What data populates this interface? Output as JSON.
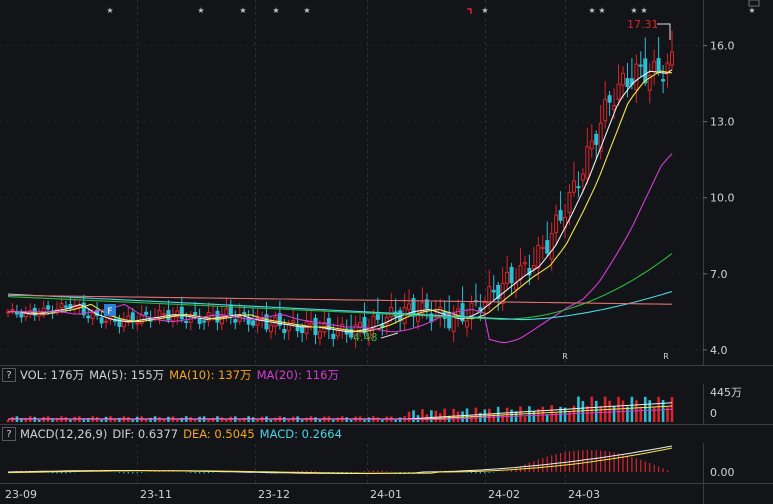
{
  "chart_data": {
    "type": "candlestick",
    "dates": [
      "23-09",
      "23-11",
      "23-12",
      "24-01",
      "24-02",
      "24-03"
    ],
    "price_axis": {
      "ticks": [
        "16.0",
        "13.0",
        "10.0",
        "7.0",
        "4.0"
      ],
      "ylim": [
        3.6,
        17.8
      ]
    },
    "price_series": {
      "close_approx": [
        5.5,
        5.4,
        5.5,
        5.6,
        5.8,
        5.4,
        5.2,
        5.1,
        5.2,
        5.3,
        5.4,
        5.3,
        5.2,
        5.3,
        5.4,
        5.2,
        5.1,
        5.0,
        4.9,
        4.9,
        4.8,
        4.7,
        4.8,
        5.0,
        5.3,
        5.5,
        5.6,
        5.4,
        5.2,
        5.4,
        5.9,
        6.4,
        6.9,
        7.3,
        8.1,
        9.3,
        10.6,
        12.2,
        13.8,
        14.6,
        15.0,
        14.9,
        15.3
      ],
      "ma_lines": [
        "MA5",
        "MA10",
        "MA20",
        "MA60",
        "MA120",
        "MA250"
      ]
    },
    "annotations": {
      "high": "17.31",
      "low": "4.48",
      "marker": "F",
      "r_marks": [
        "R",
        "R"
      ]
    },
    "volume": {
      "label": "VOL: 176万",
      "ma5": "MA(5): 155万",
      "ma10": "MA(10): 137万",
      "ma20": "MA(20): 116万",
      "ticks": [
        "445万",
        "0"
      ]
    },
    "macd": {
      "label": "MACD(12,26,9)",
      "dif": "DIF: 0.6377",
      "dea": "DEA: 0.5045",
      "macd": "MACD: 0.2664",
      "ticks": [
        "0.00"
      ]
    },
    "colors": {
      "up": "#d8252b",
      "down": "#2cc0d6",
      "ma5": "#f0f0f0",
      "ma10": "#f6e64a",
      "ma20": "#d43dd4",
      "ma60": "#2fb840",
      "ma120": "#49d6e6",
      "ma250": "#e07272"
    }
  }
}
